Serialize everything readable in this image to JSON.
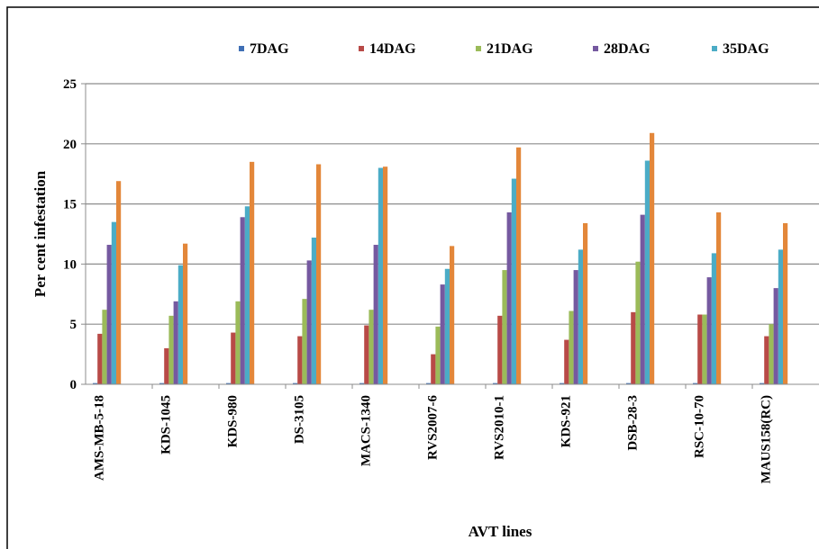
{
  "chart_data": {
    "type": "bar",
    "title": "",
    "xlabel": "AVT lines",
    "ylabel": "Per cent infestation",
    "ylim": [
      0,
      25
    ],
    "yticks": [
      "0",
      "5",
      "10",
      "15",
      "20",
      "25"
    ],
    "grid": true,
    "legend_position": "top",
    "categories": [
      "AMS-MB-5-18",
      "KDS-1045",
      "KDS-980",
      "DS-3105",
      "MACS-1340",
      "RVS2007-6",
      "RVS2010-1",
      "KDS-921",
      "DSB-28-3",
      "RSC-10-70",
      "MAUS158(RC)"
    ],
    "series": [
      {
        "name": "7DAG",
        "color": "#3f6fb5",
        "values": [
          0.1,
          0.1,
          0.1,
          0.1,
          0.1,
          0.1,
          0.1,
          0.1,
          0.1,
          0.1,
          0.1
        ]
      },
      {
        "name": "14DAG",
        "color": "#b84a47",
        "values": [
          4.2,
          3.0,
          4.3,
          4.0,
          4.9,
          2.5,
          5.7,
          3.7,
          6.0,
          5.8,
          4.0
        ]
      },
      {
        "name": "21DAG",
        "color": "#9bbb59",
        "values": [
          6.2,
          5.7,
          6.9,
          7.1,
          6.2,
          4.8,
          9.5,
          6.1,
          10.2,
          5.8,
          5.0
        ]
      },
      {
        "name": "28DAG",
        "color": "#7559a0",
        "values": [
          11.6,
          6.9,
          13.9,
          10.3,
          11.6,
          8.3,
          14.3,
          9.5,
          14.1,
          8.9,
          8.0
        ]
      },
      {
        "name": "35DAG",
        "color": "#4bacc6",
        "values": [
          13.5,
          9.9,
          14.8,
          12.2,
          18.0,
          9.6,
          17.1,
          11.2,
          18.6,
          10.9,
          11.2
        ]
      },
      {
        "name": "",
        "color": "#e3873a",
        "values": [
          16.9,
          11.7,
          18.5,
          18.3,
          18.1,
          11.5,
          19.7,
          13.4,
          20.9,
          14.3,
          13.4
        ]
      }
    ]
  }
}
